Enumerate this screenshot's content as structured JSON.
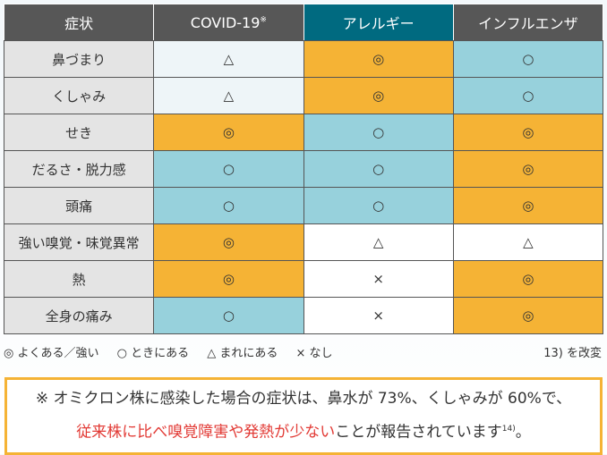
{
  "header": {
    "symptom": "症状",
    "covid": "COVID-19",
    "covid_mark": "※",
    "allergy": "アレルギー",
    "flu": "インフルエンザ"
  },
  "colors": {
    "header": "#575757",
    "allergy_header": "#006a80",
    "frequent": "#f5b335",
    "sometimes": "#97d1dc"
  },
  "rows": [
    {
      "symptom": "鼻づまり",
      "covid": "△",
      "allergy": "◎",
      "flu": "○",
      "c": [
        "pale",
        "orange",
        "teal"
      ]
    },
    {
      "symptom": "くしゃみ",
      "covid": "△",
      "allergy": "◎",
      "flu": "○",
      "c": [
        "pale",
        "orange",
        "teal"
      ]
    },
    {
      "symptom": "せき",
      "covid": "◎",
      "allergy": "○",
      "flu": "◎",
      "c": [
        "orange",
        "teal",
        "orange"
      ]
    },
    {
      "symptom": "だるさ・脱力感",
      "covid": "○",
      "allergy": "○",
      "flu": "◎",
      "c": [
        "teal",
        "teal",
        "orange"
      ]
    },
    {
      "symptom": "頭痛",
      "covid": "○",
      "allergy": "○",
      "flu": "◎",
      "c": [
        "teal",
        "teal",
        "orange"
      ]
    },
    {
      "symptom": "強い嗅覚・味覚異常",
      "covid": "◎",
      "allergy": "△",
      "flu": "△",
      "c": [
        "orange",
        "white",
        "white"
      ]
    },
    {
      "symptom": "熱",
      "covid": "◎",
      "allergy": "×",
      "flu": "◎",
      "c": [
        "orange",
        "white",
        "orange"
      ]
    },
    {
      "symptom": "全身の痛み",
      "covid": "○",
      "allergy": "×",
      "flu": "◎",
      "c": [
        "teal",
        "white",
        "orange"
      ]
    }
  ],
  "legend": [
    "◎ よくある／強い",
    "○ ときにある",
    "△ まれにある",
    "× なし"
  ],
  "source": "13) を改変",
  "note": {
    "line1": "※ オミクロン株に感染した場合の症状は、鼻水が 73%、くしゃみが 60%で、",
    "highlight": "従来株に比べ嗅覚障害や発熱が少ない",
    "rest": "ことが報告されています",
    "ref": "14)",
    "end": "。"
  }
}
